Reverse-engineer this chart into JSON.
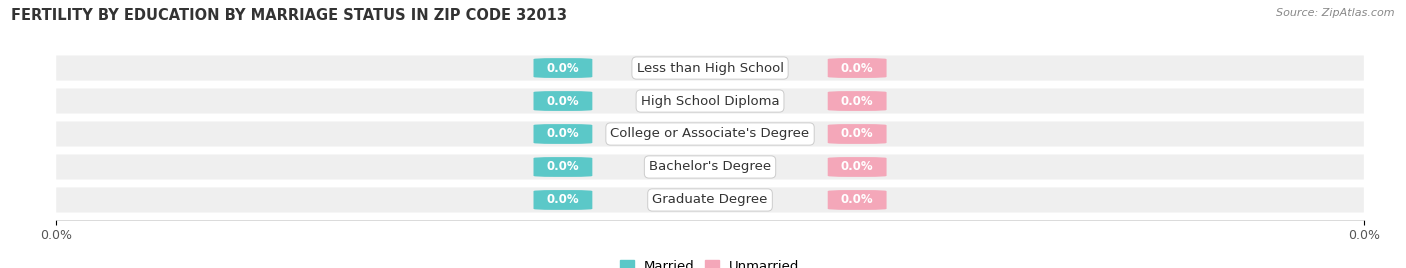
{
  "title": "FERTILITY BY EDUCATION BY MARRIAGE STATUS IN ZIP CODE 32013",
  "source": "Source: ZipAtlas.com",
  "categories": [
    "Less than High School",
    "High School Diploma",
    "College or Associate's Degree",
    "Bachelor's Degree",
    "Graduate Degree"
  ],
  "married_values": [
    0.0,
    0.0,
    0.0,
    0.0,
    0.0
  ],
  "unmarried_values": [
    0.0,
    0.0,
    0.0,
    0.0,
    0.0
  ],
  "married_color": "#5bc8c8",
  "unmarried_color": "#f4a7b9",
  "row_bg_color": "#efefef",
  "background_color": "#ffffff",
  "bar_height": 0.6,
  "title_fontsize": 10.5,
  "tick_fontsize": 9,
  "value_label_fontsize": 8.5,
  "category_fontsize": 9.5,
  "legend_fontsize": 9.5
}
